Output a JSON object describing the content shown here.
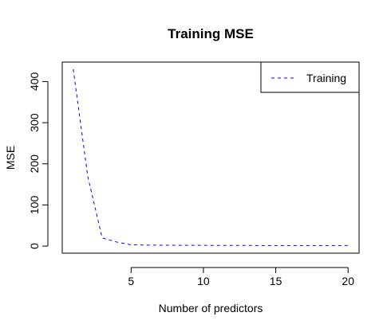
{
  "chart_data": {
    "type": "line",
    "title": "Training MSE",
    "xlabel": "Number of predictors",
    "ylabel": "MSE",
    "xlim": [
      0.24,
      20.76
    ],
    "ylim": [
      -17.2,
      447.2
    ],
    "x_ticks": [
      5,
      10,
      15,
      20
    ],
    "y_ticks": [
      0,
      100,
      200,
      300,
      400
    ],
    "grid": false,
    "legend_position": "top-right",
    "series": [
      {
        "name": "Training",
        "color": "#0000ff",
        "line_style": "dashed",
        "x": [
          1,
          2,
          3,
          4,
          5,
          6,
          7,
          8,
          9,
          10,
          11,
          12,
          13,
          14,
          15,
          16,
          17,
          18,
          19,
          20
        ],
        "y": [
          430,
          170,
          20,
          10,
          3,
          2.5,
          2.2,
          2,
          1.9,
          1.8,
          1.7,
          1.6,
          1.6,
          1.5,
          1.5,
          1.5,
          1.5,
          1.5,
          1.5,
          1.5
        ]
      }
    ]
  }
}
